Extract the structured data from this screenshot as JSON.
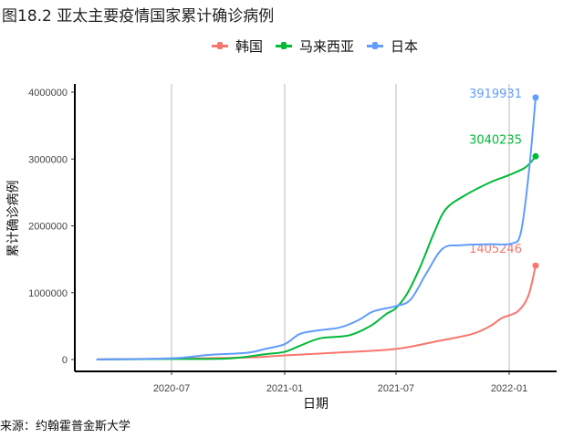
{
  "chart_data": {
    "type": "line",
    "title": "图18.2 亚太主要疫情国家累计确诊病例",
    "xlabel": "日期",
    "ylabel": "累计确诊病例",
    "source": "来源：约翰霍普金斯大学",
    "ylim": [
      0,
      4000000
    ],
    "xlim": [
      "2020-02-01",
      "2022-03-01"
    ],
    "yticks": [
      0,
      1000000,
      2000000,
      3000000,
      4000000
    ],
    "ytick_labels": [
      "0",
      "1000000",
      "2000000",
      "3000000",
      "4000000"
    ],
    "xticks": [
      "2020-07-01",
      "2021-01-01",
      "2021-07-01",
      "2022-01-01"
    ],
    "xtick_labels": [
      "2020-07",
      "2021-01",
      "2021-07",
      "2022-01"
    ],
    "grid": "vertical",
    "legend_position": "top",
    "series": [
      {
        "name": "韩国",
        "color": "#F8766D",
        "end_label": "1405246",
        "points": [
          [
            "2020-03-01",
            4000
          ],
          [
            "2020-07-01",
            13000
          ],
          [
            "2020-11-01",
            30000
          ],
          [
            "2021-01-01",
            62000
          ],
          [
            "2021-04-01",
            105000
          ],
          [
            "2021-07-01",
            158000
          ],
          [
            "2021-09-01",
            265000
          ],
          [
            "2021-11-01",
            380000
          ],
          [
            "2021-12-01",
            500000
          ],
          [
            "2021-12-20",
            620000
          ],
          [
            "2022-01-15",
            720000
          ],
          [
            "2022-02-01",
            950000
          ],
          [
            "2022-02-13",
            1405246
          ]
        ]
      },
      {
        "name": "马来西亚",
        "color": "#00BA38",
        "end_label": "3040235",
        "points": [
          [
            "2020-03-01",
            0
          ],
          [
            "2020-07-01",
            8700
          ],
          [
            "2020-10-01",
            15000
          ],
          [
            "2020-12-01",
            80000
          ],
          [
            "2021-01-01",
            115000
          ],
          [
            "2021-02-01",
            230000
          ],
          [
            "2021-03-01",
            320000
          ],
          [
            "2021-04-15",
            360000
          ],
          [
            "2021-05-20",
            500000
          ],
          [
            "2021-06-15",
            680000
          ],
          [
            "2021-07-01",
            770000
          ],
          [
            "2021-07-20",
            1000000
          ],
          [
            "2021-08-10",
            1400000
          ],
          [
            "2021-09-01",
            1900000
          ],
          [
            "2021-09-20",
            2250000
          ],
          [
            "2021-10-20",
            2450000
          ],
          [
            "2021-12-01",
            2650000
          ],
          [
            "2022-01-01",
            2760000
          ],
          [
            "2022-01-25",
            2860000
          ],
          [
            "2022-02-05",
            2950000
          ],
          [
            "2022-02-13",
            3040235
          ]
        ]
      },
      {
        "name": "日本",
        "color": "#619CFF",
        "end_label": "3919931",
        "points": [
          [
            "2020-03-01",
            0
          ],
          [
            "2020-07-01",
            19000
          ],
          [
            "2020-09-01",
            70000
          ],
          [
            "2020-11-01",
            100000
          ],
          [
            "2020-12-01",
            160000
          ],
          [
            "2021-01-01",
            230000
          ],
          [
            "2021-01-25",
            380000
          ],
          [
            "2021-02-20",
            430000
          ],
          [
            "2021-04-01",
            480000
          ],
          [
            "2021-05-01",
            590000
          ],
          [
            "2021-05-25",
            720000
          ],
          [
            "2021-07-01",
            800000
          ],
          [
            "2021-07-25",
            900000
          ],
          [
            "2021-08-20",
            1300000
          ],
          [
            "2021-09-15",
            1660000
          ],
          [
            "2021-10-15",
            1710000
          ],
          [
            "2021-12-01",
            1725000
          ],
          [
            "2022-01-05",
            1735000
          ],
          [
            "2022-01-20",
            1900000
          ],
          [
            "2022-02-02",
            2800000
          ],
          [
            "2022-02-13",
            3919931
          ]
        ]
      }
    ]
  }
}
